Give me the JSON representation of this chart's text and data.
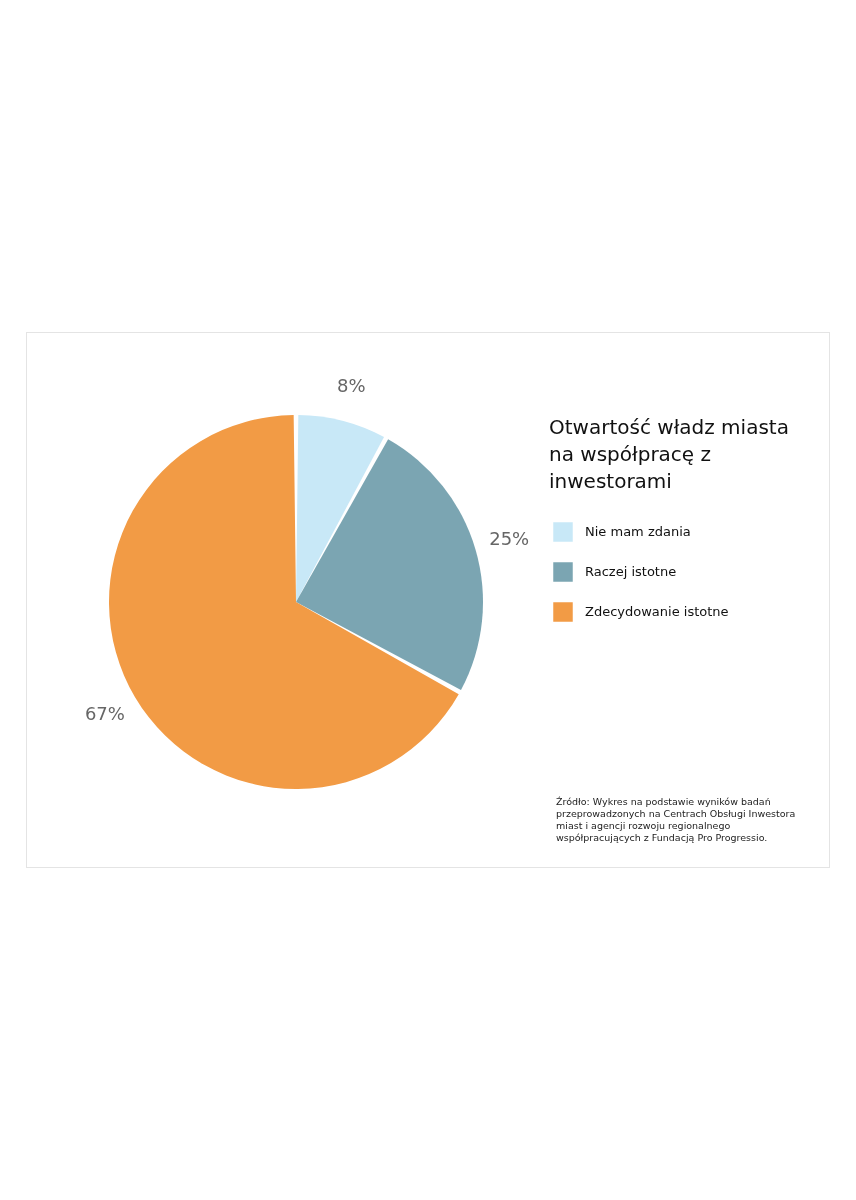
{
  "chart_data": {
    "type": "pie",
    "title": "Otwartość władz miasta na współpracę z inwestorami",
    "categories": [
      "Nie mam zdania",
      "Raczej istotne",
      "Zdecydowanie istotne"
    ],
    "values": [
      8,
      25,
      67
    ],
    "colors": [
      "#c8e8f7",
      "#7ba5b2",
      "#f29b45"
    ],
    "value_labels": [
      "8%",
      "25%",
      "67%"
    ],
    "legend": "right",
    "annotations": [
      "Źródło: Wykres na podstawie wyników badań przeprowadzonych na Centrach Obsługi Inwestora miast i agencji rozwoju regionalnego współpracujących z Fundacją Pro Progressio."
    ]
  }
}
